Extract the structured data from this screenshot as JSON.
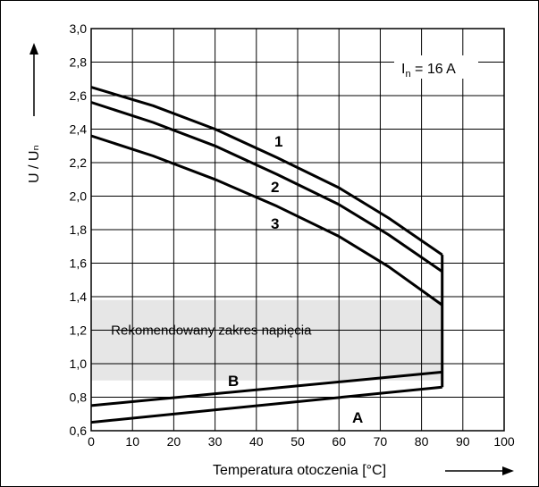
{
  "chart_data": {
    "type": "line",
    "xlabel": "Temperatura otoczenia [°C]",
    "ylabel": "U / Uₙ",
    "xlim": [
      0,
      100
    ],
    "ylim": [
      0.6,
      3.0
    ],
    "x_ticks": [
      "0",
      "10",
      "20",
      "30",
      "40",
      "50",
      "60",
      "70",
      "80",
      "90",
      "100"
    ],
    "y_ticks": [
      "0,6",
      "0,8",
      "1,0",
      "1,2",
      "1,4",
      "1,6",
      "1,8",
      "2,0",
      "2,2",
      "2,4",
      "2,6",
      "2,8",
      "3,0"
    ],
    "grid": true,
    "annotation": {
      "symbol": "I",
      "subscript": "n",
      "text": " = 16 A"
    },
    "shaded_region": {
      "label": "Rekomendowany zakres napięcia",
      "x": [
        0,
        85
      ],
      "y": [
        0.9,
        1.38
      ],
      "color": "#e6e6e6"
    },
    "series": [
      {
        "name": "1",
        "x": [
          0,
          15,
          30,
          45,
          60,
          72,
          85
        ],
        "y": [
          2.65,
          2.54,
          2.4,
          2.23,
          2.05,
          1.87,
          1.65
        ]
      },
      {
        "name": "2",
        "x": [
          0,
          15,
          30,
          45,
          60,
          72,
          85
        ],
        "y": [
          2.56,
          2.44,
          2.3,
          2.13,
          1.95,
          1.77,
          1.55
        ]
      },
      {
        "name": "3",
        "x": [
          0,
          15,
          30,
          45,
          60,
          72,
          85
        ],
        "y": [
          2.36,
          2.24,
          2.1,
          1.94,
          1.76,
          1.58,
          1.35
        ]
      },
      {
        "name": "B",
        "x": [
          0,
          85
        ],
        "y": [
          0.75,
          0.95
        ]
      },
      {
        "name": "A",
        "x": [
          0,
          85
        ],
        "y": [
          0.65,
          0.86
        ]
      }
    ],
    "vertical_segment": {
      "x": 85,
      "y": [
        0.86,
        1.65
      ]
    }
  }
}
